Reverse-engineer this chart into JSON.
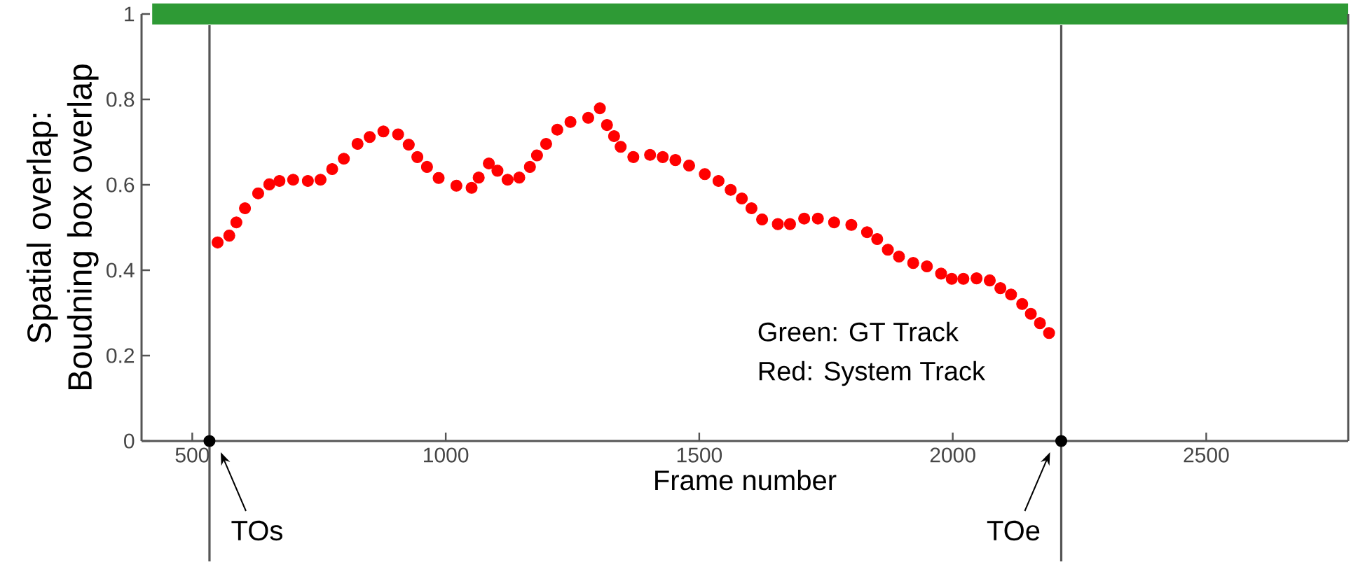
{
  "chart_data": {
    "type": "scatter",
    "xlabel": "Frame number",
    "ylabel": "Spatial overlap: Boudning box overlap",
    "xlim": [
      400,
      2780
    ],
    "ylim": [
      0,
      1
    ],
    "xticks": [
      500,
      1000,
      1500,
      2000,
      2500
    ],
    "yticks": [
      0,
      0.2,
      0.4,
      0.6,
      0.8,
      1
    ],
    "annotations": [
      "Green: GT Track",
      "Red: System Track"
    ],
    "ref_lines": [
      {
        "axis": "x",
        "value": 534,
        "label": "TOs",
        "color": "#555555"
      },
      {
        "axis": "x",
        "value": 2214,
        "label": "TOe",
        "color": "#555555"
      }
    ],
    "series": [
      {
        "type": "line",
        "color": "#2e9a35",
        "x": [
          421,
          2780
        ],
        "values": [
          1,
          1
        ]
      },
      {
        "color": "#000000",
        "marker": "circle",
        "x": [
          534,
          2214
        ],
        "values": [
          0,
          0
        ]
      },
      {
        "color": "#ff0000",
        "marker": "circle",
        "x": [
          550,
          573,
          587,
          604,
          630,
          652,
          672,
          699,
          728,
          753,
          776,
          799,
          826,
          850,
          877,
          906,
          927,
          944,
          963,
          986,
          1021,
          1051,
          1065,
          1085,
          1102,
          1122,
          1145,
          1166,
          1180,
          1198,
          1220,
          1246,
          1281,
          1304,
          1318,
          1332,
          1345,
          1370,
          1403,
          1428,
          1453,
          1480,
          1511,
          1538,
          1562,
          1584,
          1603,
          1624,
          1655,
          1679,
          1707,
          1734,
          1766,
          1800,
          1831,
          1851,
          1872,
          1894,
          1922,
          1949,
          1977,
          1998,
          2021,
          2047,
          2073,
          2094,
          2115,
          2137,
          2154,
          2172,
          2190
        ],
        "values": [
          0.465,
          0.481,
          0.512,
          0.545,
          0.58,
          0.601,
          0.609,
          0.612,
          0.609,
          0.612,
          0.637,
          0.661,
          0.696,
          0.712,
          0.725,
          0.718,
          0.694,
          0.665,
          0.642,
          0.616,
          0.598,
          0.593,
          0.617,
          0.65,
          0.633,
          0.612,
          0.617,
          0.642,
          0.669,
          0.696,
          0.729,
          0.747,
          0.757,
          0.779,
          0.74,
          0.714,
          0.689,
          0.665,
          0.67,
          0.665,
          0.658,
          0.645,
          0.625,
          0.609,
          0.588,
          0.568,
          0.545,
          0.519,
          0.508,
          0.508,
          0.521,
          0.521,
          0.512,
          0.506,
          0.489,
          0.473,
          0.448,
          0.432,
          0.417,
          0.409,
          0.392,
          0.38,
          0.38,
          0.381,
          0.376,
          0.358,
          0.343,
          0.321,
          0.298,
          0.276,
          0.253
        ]
      }
    ]
  }
}
